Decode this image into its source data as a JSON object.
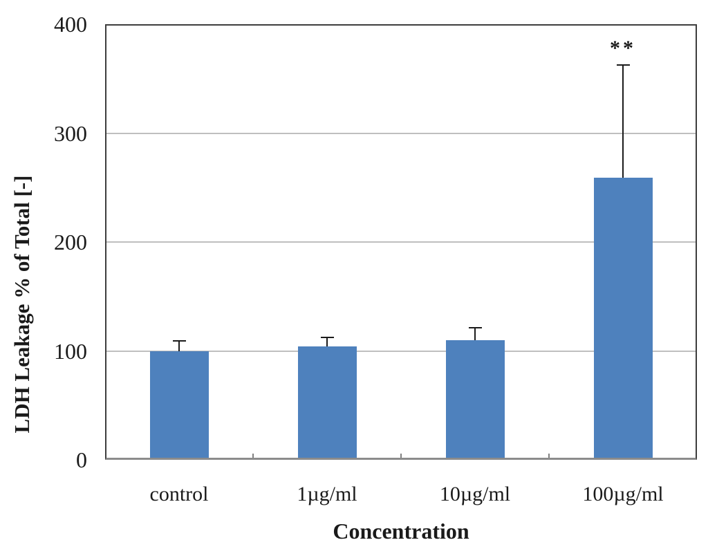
{
  "chart_data": {
    "type": "bar",
    "title": "",
    "xlabel": "Concentration",
    "ylabel": "LDH Leakage % of Total [-]",
    "categories": [
      "control",
      "1µg/ml",
      "10µg/ml",
      "100µg/ml"
    ],
    "values": [
      100,
      104,
      110,
      259
    ],
    "errors_plus": [
      10,
      9,
      12,
      104
    ],
    "annotations": [
      "",
      "",
      "",
      "**"
    ],
    "ylim": [
      0,
      400
    ],
    "yticks": [
      0,
      100,
      200,
      300,
      400
    ],
    "grid": "horizontal-only",
    "legend": "none",
    "colors": {
      "bar": "#4E81BD",
      "error": "#1a1a1a",
      "grid": "#BFBFBF",
      "frame": "#3d3d3d",
      "axis_bottom": "#8C8C8C",
      "tick_mark": "#808080",
      "background": "#ffffff"
    }
  }
}
